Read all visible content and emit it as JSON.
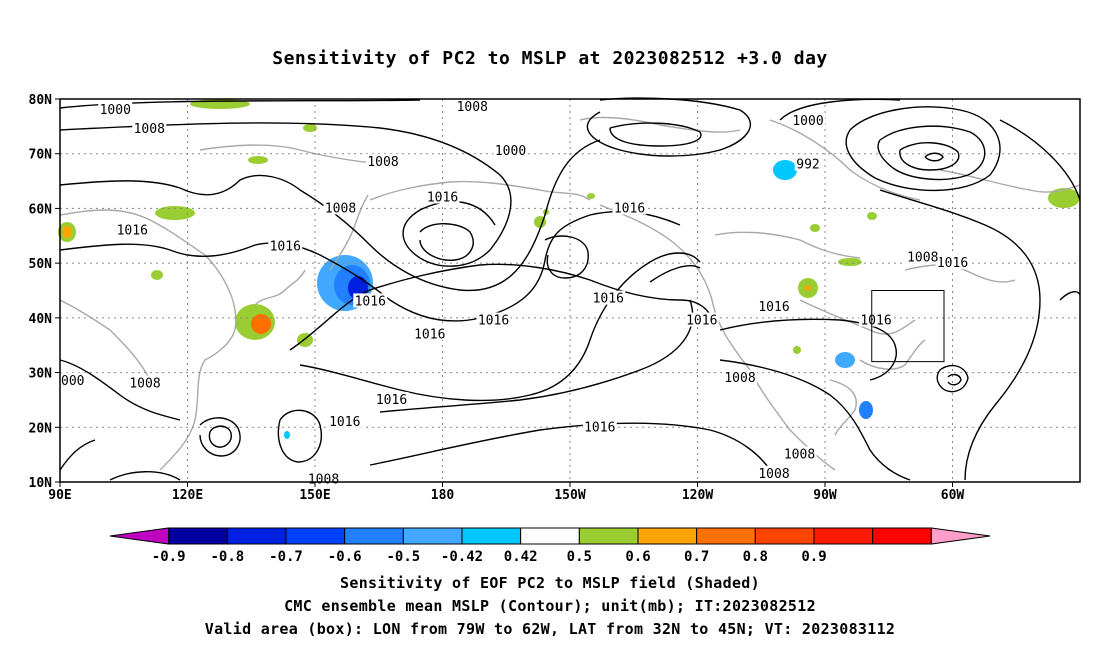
{
  "title": "Sensitivity of PC2 to MSLP at 2023082512 +3.0 day",
  "lat_labels": [
    "80N",
    "70N",
    "60N",
    "50N",
    "40N",
    "30N",
    "20N",
    "10N"
  ],
  "lon_labels": [
    "90E",
    "120E",
    "150E",
    "180",
    "150W",
    "120W",
    "90W",
    "60W"
  ],
  "contour_labels": [
    {
      "text": "1000",
      "lon": 103,
      "lat": 78
    },
    {
      "text": "1008",
      "lon": 111,
      "lat": 74.5
    },
    {
      "text": "1008",
      "lon": 187,
      "lat": 78.5
    },
    {
      "text": "1000",
      "lon": 196,
      "lat": 70.5
    },
    {
      "text": "1000",
      "lon": 266,
      "lat": 76
    },
    {
      "text": "992",
      "lon": 266,
      "lat": 68
    },
    {
      "text": "1008",
      "lon": 166,
      "lat": 68.5
    },
    {
      "text": "1016",
      "lon": 180,
      "lat": 62
    },
    {
      "text": "1016",
      "lon": 224,
      "lat": 60
    },
    {
      "text": "1008",
      "lon": 156,
      "lat": 60
    },
    {
      "text": "1016",
      "lon": 107,
      "lat": 56
    },
    {
      "text": "1016",
      "lon": 143,
      "lat": 53
    },
    {
      "text": "1016",
      "lon": 163,
      "lat": 43
    },
    {
      "text": "1016",
      "lon": 177,
      "lat": 37
    },
    {
      "text": "1016",
      "lon": 192,
      "lat": 39.5
    },
    {
      "text": "1016",
      "lon": 219,
      "lat": 43.5
    },
    {
      "text": "1016",
      "lon": 241,
      "lat": 39.5
    },
    {
      "text": "1016",
      "lon": 258,
      "lat": 42
    },
    {
      "text": "1016",
      "lon": 282,
      "lat": 39.5
    },
    {
      "text": "1016",
      "lon": 300,
      "lat": 50
    },
    {
      "text": "1008",
      "lon": 293,
      "lat": 51
    },
    {
      "text": "1016",
      "lon": 168,
      "lat": 25
    },
    {
      "text": "1016",
      "lon": 157,
      "lat": 21
    },
    {
      "text": "1016",
      "lon": 217,
      "lat": 20
    },
    {
      "text": "1008",
      "lon": 110,
      "lat": 28
    },
    {
      "text": "1008",
      "lon": 250,
      "lat": 29
    },
    {
      "text": "1008",
      "lon": 264,
      "lat": 15
    },
    {
      "text": "1008",
      "lon": 258,
      "lat": 11.5
    },
    {
      "text": "1008",
      "lon": 152,
      "lat": 10.5
    },
    {
      "text": "000",
      "lon": 93,
      "lat": 28.5
    }
  ],
  "colorbar": {
    "labels": [
      "-0.9",
      "-0.8",
      "-0.7",
      "-0.6",
      "-0.5",
      "-0.42",
      "0.42",
      "0.5",
      "0.6",
      "0.7",
      "0.8",
      "0.9"
    ],
    "colors": [
      "#c000c0",
      "#0000a0",
      "#0020e0",
      "#0040ff",
      "#2080ff",
      "#40a8ff",
      "#00c8ff",
      "#ffffff",
      "#9acd32",
      "#ffa500",
      "#ff7000",
      "#ff4500",
      "#ff1a00",
      "#ff0000",
      "#ff9ec8"
    ]
  },
  "box": {
    "lon_min": 281,
    "lon_max": 298,
    "lat_min": 32,
    "lat_max": 45
  },
  "caption_line1": "Sensitivity of EOF PC2 to MSLP field (Shaded)",
  "caption_line2": "CMC ensemble mean MSLP (Contour); unit(mb); IT:2023082512",
  "caption_line3": "Valid area (box): LON from 79W to 62W, LAT from 32N to 45N; VT: 2023083112"
}
